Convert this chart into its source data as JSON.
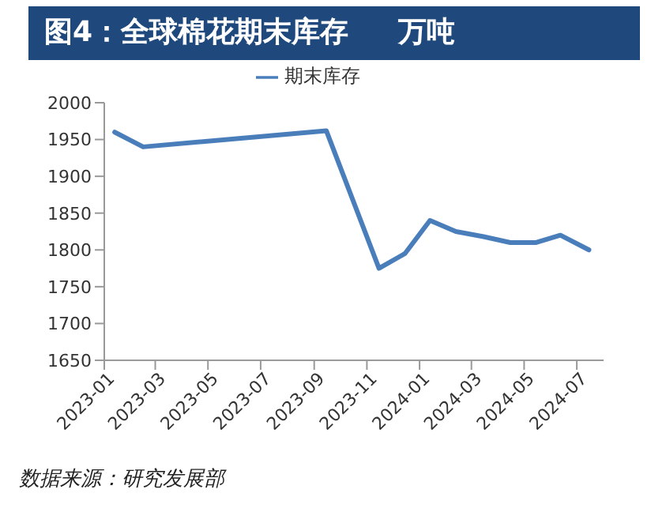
{
  "chart_data": {
    "type": "line",
    "title": "图4：全球棉花期末库存     万吨",
    "x": [
      "2023-01-13",
      "2023-02-15",
      "2023-09-15",
      "2023-11-15",
      "2023-12-15",
      "2024-01-13",
      "2024-02-12",
      "2024-03-15",
      "2024-04-15",
      "2024-05-15",
      "2024-06-12",
      "2024-07-15"
    ],
    "series": [
      {
        "name": "期末库存",
        "color": "#4a7ebb",
        "values": [
          1960,
          1940,
          1962,
          1775,
          1795,
          1840,
          1825,
          1818,
          1810,
          1810,
          1820,
          1800
        ]
      }
    ],
    "xlim": [
      "2023-01-01",
      "2024-08-01"
    ],
    "xticks": [
      "2023-01",
      "2023-03",
      "2023-05",
      "2023-07",
      "2023-09",
      "2023-11",
      "2024-01",
      "2024-03",
      "2024-05",
      "2024-07"
    ],
    "ylim": [
      1650,
      2000
    ],
    "yticks": [
      1650,
      1700,
      1750,
      1800,
      1850,
      1900,
      1950,
      2000
    ],
    "grid": false,
    "legend": "top",
    "marker": "none",
    "line_style": "solid",
    "annotations": [
      "数据来源：研究发展部"
    ]
  }
}
